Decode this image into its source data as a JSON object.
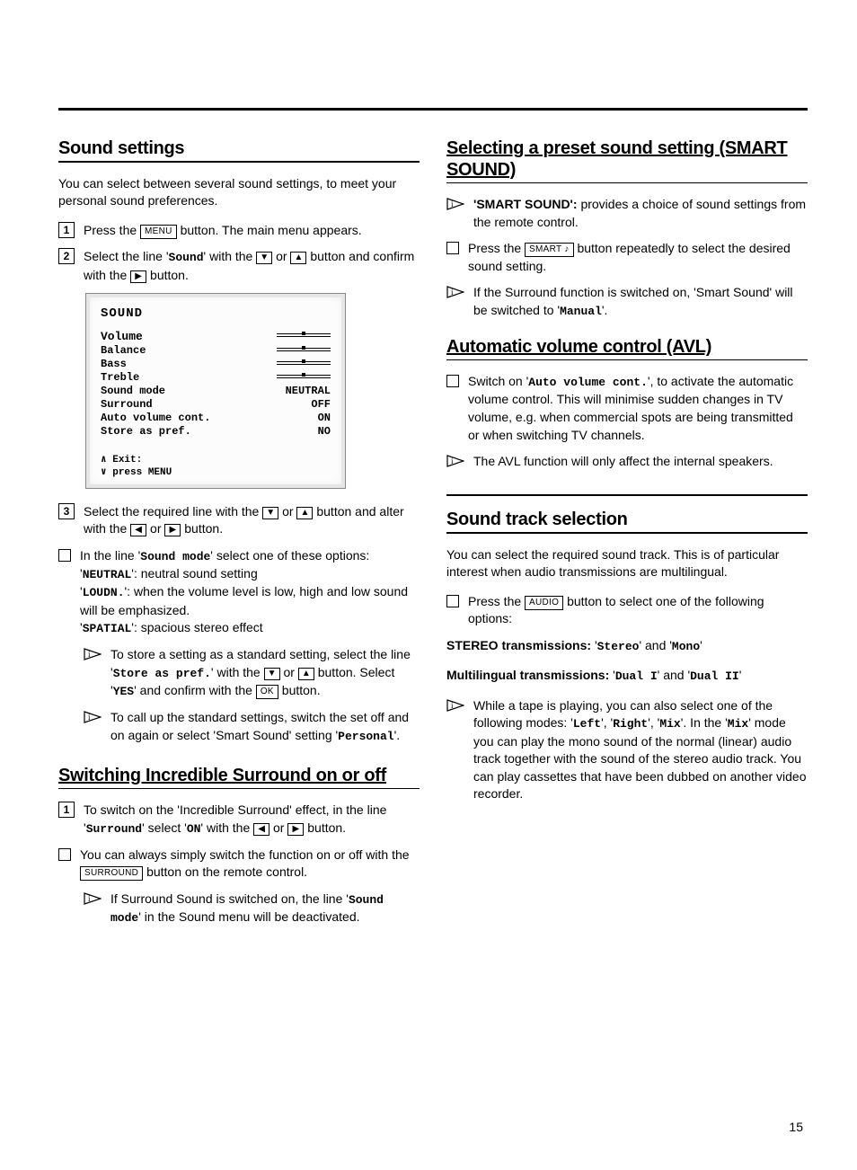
{
  "page_number": "15",
  "left": {
    "h1": "Sound settings",
    "intro": "You can select between several sound settings, to meet your personal sound preferences.",
    "s1_a": "Press the ",
    "s1_btn": "MENU",
    "s1_b": " button. The main menu appears.",
    "s2_a": "Select the line '",
    "s2_sound": "Sound",
    "s2_b": "' with the ",
    "s2_c": " or ",
    "s2_d": " button and confirm with the ",
    "s2_e": " button.",
    "osd": {
      "title": "SOUND",
      "rows": [
        {
          "label": "Volume",
          "type": "slider"
        },
        {
          "label": "Balance",
          "type": "slider"
        },
        {
          "label": "Bass",
          "type": "slider"
        },
        {
          "label": "Treble",
          "type": "slider"
        },
        {
          "label": "Sound mode",
          "val": "NEUTRAL"
        },
        {
          "label": "Surround",
          "val": "OFF"
        },
        {
          "label": "Auto volume cont.",
          "val": "ON"
        },
        {
          "label": "Store as pref.",
          "val": "NO"
        }
      ],
      "foot1": "∧ Exit:",
      "foot2": "∨ press MENU"
    },
    "s3_a": "Select the required line with the ",
    "s3_b": " or ",
    "s3_c": " button and alter with the ",
    "s3_d": " or ",
    "s3_e": " button.",
    "sm_a": "In the line '",
    "sm_mode": "Sound mode",
    "sm_b": "' select one of these options:",
    "sm_n1": "'",
    "sm_neutral": "NEUTRAL",
    "sm_n2": "': neutral sound setting",
    "sm_l1": "'",
    "sm_loud": "LOUDN.",
    "sm_l2": "': when the volume level is low, high and low sound will be emphasized.",
    "sm_s1": "'",
    "sm_spatial": "SPATIAL",
    "sm_s2": "': spacious stereo effect",
    "tip1_a": "To store a setting as a standard setting, select the line '",
    "tip1_store": "Store as pref.",
    "tip1_b": "' with the ",
    "tip1_c": " or ",
    "tip1_d": " button. Select '",
    "tip1_yes": "YES",
    "tip1_e": "' and confirm with the ",
    "tip1_ok": "OK",
    "tip1_f": " button.",
    "tip2_a": "To call up the standard settings, switch the set off and on again or select 'Smart Sound' setting '",
    "tip2_personal": "Personal",
    "tip2_b": "'.",
    "h2": "Switching Incredible Surround on or off",
    "sr1_a": "To switch on the 'Incredible Surround' effect, in the line '",
    "sr1_surround": "Surround",
    "sr1_b": "' select '",
    "sr1_on": "ON",
    "sr1_c": "' with the ",
    "sr1_d": " or ",
    "sr1_e": " button.",
    "sr2_a": "You can always simply switch the function on or off with the ",
    "sr2_btn": "SURROUND",
    "sr2_b": " button on the remote control.",
    "sr_tip_a": "If Surround Sound is switched on, the line '",
    "sr_tip_mode": "Sound mode",
    "sr_tip_b": "' in the Sound menu will be deactivated."
  },
  "right": {
    "h1": "Selecting a preset sound setting (SMART SOUND)",
    "ss1_a": "'SMART SOUND': ",
    "ss1_b": "provides a choice of sound settings from the remote control.",
    "ss2_a": "Press the ",
    "ss2_btn": "SMART ♪",
    "ss2_b": " button repeatedly to select the desired sound setting.",
    "ss3_a": "If the Surround function is switched on, 'Smart Sound' will be switched to '",
    "ss3_manual": "Manual",
    "ss3_b": "'.",
    "h2": "Automatic volume control (AVL)",
    "avl1_a": "Switch on '",
    "avl1_auto": "Auto volume cont.",
    "avl1_b": "', to activate the automatic volume control. This will minimise sudden changes in TV volume, e.g. when commercial spots are being transmitted or when switching TV channels.",
    "avl2": "The AVL function will only affect the internal speakers.",
    "h3": "Sound track selection",
    "st_intro": "You can select the required sound track. This is of particular interest when audio transmissions are multilingual.",
    "st1_a": "Press the ",
    "st1_btn": "AUDIO",
    "st1_b": " button to select one of the following options:",
    "stereo_a": "STEREO transmissions: ",
    "stereo_b": "'",
    "stereo_s": "Stereo",
    "stereo_c": "' and '",
    "stereo_m": "Mono",
    "stereo_d": "'",
    "multi_a": "Multilingual transmissions: ",
    "multi_b": "'",
    "multi_d1": "Dual I",
    "multi_c": "' and '",
    "multi_d2": "Dual II",
    "multi_d": "'",
    "tape_a": "While a tape is playing, you can also select one of the following modes: '",
    "tape_left": "Left",
    "tape_b": "', '",
    "tape_right": "Right",
    "tape_c": "', '",
    "tape_mix": "Mix",
    "tape_d": "'. In the '",
    "tape_mix2": "Mix",
    "tape_e": "' mode you can play the mono sound of the normal (linear) audio track together with the sound of the stereo audio track. You can play cassettes that have been dubbed on another video recorder."
  }
}
